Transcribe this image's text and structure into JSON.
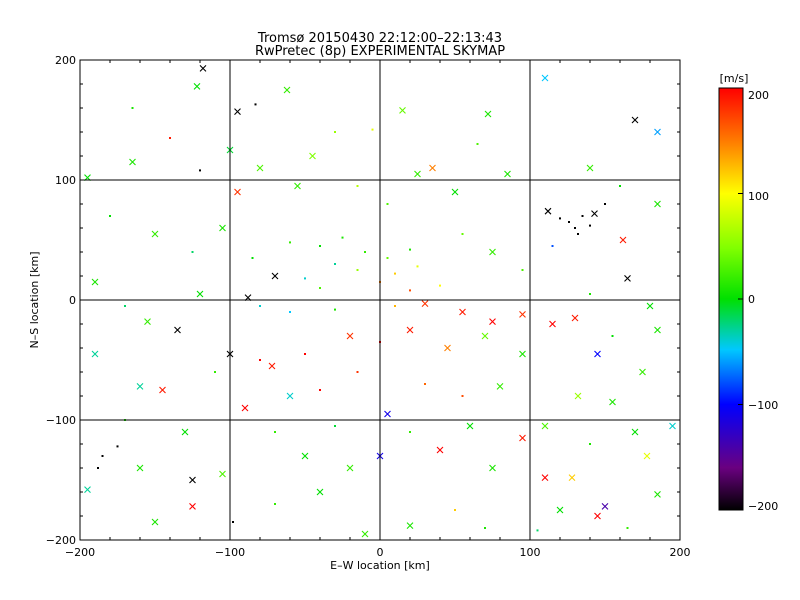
{
  "chart_data": {
    "type": "scatter",
    "title": "Tromsø 20150430 22:12:00–22:13:43",
    "subtitle": "RwPretec (8p) EXPERIMENTAL SKYMAP",
    "xlabel": "E–W location [km]",
    "ylabel": "N–S location [km]",
    "xlim": [
      -200,
      200
    ],
    "ylim": [
      -200,
      200
    ],
    "xticks": [
      "−200",
      "−100",
      "0",
      "100",
      "200"
    ],
    "yticks": [
      "200",
      "100",
      "0",
      "−100",
      "−200"
    ],
    "grid": true,
    "colorbar": {
      "label": "[m/s]",
      "range": [
        -200,
        200
      ],
      "ticks": [
        "200",
        "100",
        "0",
        "−100",
        "−200"
      ],
      "colormap": "rainbow: black (−200) → purple → blue (−100) → cyan → green (0) → yellow (100) → orange → red (200)"
    },
    "markers": [
      "dot",
      "x"
    ],
    "points": [
      {
        "x": -118,
        "y": 193,
        "v": -200,
        "m": "x"
      },
      {
        "x": -95,
        "y": 157,
        "v": -200,
        "m": "x"
      },
      {
        "x": -83,
        "y": 163,
        "v": -200,
        "m": "dot"
      },
      {
        "x": -122,
        "y": 178,
        "v": 0,
        "m": "x"
      },
      {
        "x": -62,
        "y": 175,
        "v": 20,
        "m": "x"
      },
      {
        "x": -30,
        "y": 140,
        "v": 60,
        "m": "dot"
      },
      {
        "x": -5,
        "y": 142,
        "v": 90,
        "m": "dot"
      },
      {
        "x": 15,
        "y": 158,
        "v": 40,
        "m": "x"
      },
      {
        "x": 35,
        "y": 110,
        "v": 150,
        "m": "x"
      },
      {
        "x": 72,
        "y": 155,
        "v": 10,
        "m": "x"
      },
      {
        "x": 110,
        "y": 185,
        "v": -50,
        "m": "x"
      },
      {
        "x": 170,
        "y": 150,
        "v": -200,
        "m": "x"
      },
      {
        "x": 185,
        "y": 140,
        "v": -60,
        "m": "x"
      },
      {
        "x": -195,
        "y": 102,
        "v": 0,
        "m": "x"
      },
      {
        "x": -165,
        "y": 115,
        "v": 10,
        "m": "x"
      },
      {
        "x": -120,
        "y": 108,
        "v": -200,
        "m": "dot"
      },
      {
        "x": -95,
        "y": 90,
        "v": 180,
        "m": "x"
      },
      {
        "x": -55,
        "y": 95,
        "v": 20,
        "m": "x"
      },
      {
        "x": 112,
        "y": 74,
        "v": -200,
        "m": "x"
      },
      {
        "x": 120,
        "y": 68,
        "v": -200,
        "m": "dot"
      },
      {
        "x": 126,
        "y": 65,
        "v": -200,
        "m": "dot"
      },
      {
        "x": 130,
        "y": 60,
        "v": -200,
        "m": "dot"
      },
      {
        "x": 135,
        "y": 70,
        "v": -200,
        "m": "dot"
      },
      {
        "x": 140,
        "y": 62,
        "v": -200,
        "m": "dot"
      },
      {
        "x": 143,
        "y": 72,
        "v": -200,
        "m": "x"
      },
      {
        "x": 150,
        "y": 80,
        "v": -200,
        "m": "dot"
      },
      {
        "x": 132,
        "y": 55,
        "v": -200,
        "m": "dot"
      },
      {
        "x": 162,
        "y": 50,
        "v": 190,
        "m": "x"
      },
      {
        "x": 165,
        "y": 18,
        "v": -200,
        "m": "x"
      },
      {
        "x": 115,
        "y": 45,
        "v": -80,
        "m": "dot"
      },
      {
        "x": -60,
        "y": 48,
        "v": 20,
        "m": "dot"
      },
      {
        "x": -40,
        "y": 45,
        "v": 0,
        "m": "dot"
      },
      {
        "x": -25,
        "y": 52,
        "v": 10,
        "m": "dot"
      },
      {
        "x": -10,
        "y": 40,
        "v": 20,
        "m": "dot"
      },
      {
        "x": 5,
        "y": 35,
        "v": 40,
        "m": "dot"
      },
      {
        "x": 20,
        "y": 42,
        "v": 10,
        "m": "dot"
      },
      {
        "x": -30,
        "y": 30,
        "v": -30,
        "m": "dot"
      },
      {
        "x": -15,
        "y": 25,
        "v": 60,
        "m": "dot"
      },
      {
        "x": 10,
        "y": 22,
        "v": 120,
        "m": "dot"
      },
      {
        "x": 25,
        "y": 28,
        "v": 90,
        "m": "dot"
      },
      {
        "x": -50,
        "y": 18,
        "v": -40,
        "m": "dot"
      },
      {
        "x": -70,
        "y": 20,
        "v": -200,
        "m": "x"
      },
      {
        "x": -88,
        "y": 2,
        "v": -200,
        "m": "x"
      },
      {
        "x": -40,
        "y": 10,
        "v": 30,
        "m": "dot"
      },
      {
        "x": 0,
        "y": 15,
        "v": 150,
        "m": "dot"
      },
      {
        "x": 20,
        "y": 8,
        "v": 170,
        "m": "dot"
      },
      {
        "x": 40,
        "y": 12,
        "v": 100,
        "m": "dot"
      },
      {
        "x": -80,
        "y": -5,
        "v": -40,
        "m": "dot"
      },
      {
        "x": -60,
        "y": -10,
        "v": -50,
        "m": "dot"
      },
      {
        "x": -30,
        "y": -8,
        "v": 10,
        "m": "dot"
      },
      {
        "x": 10,
        "y": -5,
        "v": 130,
        "m": "dot"
      },
      {
        "x": 30,
        "y": -3,
        "v": 180,
        "m": "x"
      },
      {
        "x": 55,
        "y": -10,
        "v": 190,
        "m": "x"
      },
      {
        "x": 75,
        "y": -18,
        "v": 200,
        "m": "x"
      },
      {
        "x": 95,
        "y": -12,
        "v": 180,
        "m": "x"
      },
      {
        "x": -135,
        "y": -25,
        "v": -200,
        "m": "x"
      },
      {
        "x": -155,
        "y": -18,
        "v": 20,
        "m": "x"
      },
      {
        "x": -100,
        "y": -45,
        "v": -200,
        "m": "x"
      },
      {
        "x": -80,
        "y": -50,
        "v": 200,
        "m": "dot"
      },
      {
        "x": -72,
        "y": -55,
        "v": 190,
        "m": "x"
      },
      {
        "x": -50,
        "y": -45,
        "v": 200,
        "m": "dot"
      },
      {
        "x": -20,
        "y": -30,
        "v": 180,
        "m": "x"
      },
      {
        "x": 0,
        "y": -35,
        "v": 200,
        "m": "dot"
      },
      {
        "x": 20,
        "y": -25,
        "v": 190,
        "m": "x"
      },
      {
        "x": 45,
        "y": -40,
        "v": 150,
        "m": "x"
      },
      {
        "x": 70,
        "y": -30,
        "v": 40,
        "m": "x"
      },
      {
        "x": 95,
        "y": -45,
        "v": 10,
        "m": "x"
      },
      {
        "x": 115,
        "y": -20,
        "v": 200,
        "m": "x"
      },
      {
        "x": 130,
        "y": -15,
        "v": 190,
        "m": "x"
      },
      {
        "x": 145,
        "y": -45,
        "v": -100,
        "m": "x"
      },
      {
        "x": 175,
        "y": -60,
        "v": 20,
        "m": "x"
      },
      {
        "x": -145,
        "y": -75,
        "v": 190,
        "m": "x"
      },
      {
        "x": -160,
        "y": -72,
        "v": -30,
        "m": "x"
      },
      {
        "x": -90,
        "y": -90,
        "v": 200,
        "m": "x"
      },
      {
        "x": -60,
        "y": -80,
        "v": -40,
        "m": "x"
      },
      {
        "x": -40,
        "y": -75,
        "v": 200,
        "m": "dot"
      },
      {
        "x": -15,
        "y": -60,
        "v": 180,
        "m": "dot"
      },
      {
        "x": 5,
        "y": -95,
        "v": -110,
        "m": "x"
      },
      {
        "x": 30,
        "y": -70,
        "v": 160,
        "m": "dot"
      },
      {
        "x": 55,
        "y": -80,
        "v": 170,
        "m": "dot"
      },
      {
        "x": 80,
        "y": -72,
        "v": 20,
        "m": "x"
      },
      {
        "x": 110,
        "y": -105,
        "v": 30,
        "m": "x"
      },
      {
        "x": 132,
        "y": -80,
        "v": 60,
        "m": "x"
      },
      {
        "x": 155,
        "y": -85,
        "v": 10,
        "m": "x"
      },
      {
        "x": 195,
        "y": -105,
        "v": -40,
        "m": "x"
      },
      {
        "x": -185,
        "y": -130,
        "v": -200,
        "m": "dot"
      },
      {
        "x": -188,
        "y": -140,
        "v": -200,
        "m": "dot"
      },
      {
        "x": -175,
        "y": -122,
        "v": -200,
        "m": "dot"
      },
      {
        "x": -195,
        "y": -158,
        "v": -30,
        "m": "x"
      },
      {
        "x": -160,
        "y": -140,
        "v": 10,
        "m": "x"
      },
      {
        "x": -125,
        "y": -150,
        "v": -200,
        "m": "x"
      },
      {
        "x": -125,
        "y": -172,
        "v": 200,
        "m": "x"
      },
      {
        "x": -105,
        "y": -145,
        "v": 30,
        "m": "x"
      },
      {
        "x": -98,
        "y": -185,
        "v": -200,
        "m": "dot"
      },
      {
        "x": -50,
        "y": -130,
        "v": 0,
        "m": "x"
      },
      {
        "x": -20,
        "y": -140,
        "v": 20,
        "m": "x"
      },
      {
        "x": 0,
        "y": -130,
        "v": -110,
        "m": "x"
      },
      {
        "x": 40,
        "y": -125,
        "v": 200,
        "m": "x"
      },
      {
        "x": 50,
        "y": -175,
        "v": 120,
        "m": "dot"
      },
      {
        "x": 75,
        "y": -140,
        "v": 10,
        "m": "x"
      },
      {
        "x": 95,
        "y": -115,
        "v": 190,
        "m": "x"
      },
      {
        "x": 110,
        "y": -148,
        "v": 200,
        "m": "x"
      },
      {
        "x": 128,
        "y": -148,
        "v": 120,
        "m": "x"
      },
      {
        "x": 150,
        "y": -172,
        "v": -140,
        "m": "x"
      },
      {
        "x": 145,
        "y": -180,
        "v": 200,
        "m": "x"
      },
      {
        "x": 178,
        "y": -130,
        "v": 90,
        "m": "x"
      },
      {
        "x": 185,
        "y": -162,
        "v": 10,
        "m": "x"
      },
      {
        "x": -10,
        "y": -195,
        "v": 20,
        "m": "x"
      },
      {
        "x": 20,
        "y": -188,
        "v": 10,
        "m": "x"
      },
      {
        "x": 105,
        "y": -192,
        "v": -20,
        "m": "dot"
      },
      {
        "x": -165,
        "y": 160,
        "v": 10,
        "m": "dot"
      },
      {
        "x": -140,
        "y": 135,
        "v": 190,
        "m": "dot"
      },
      {
        "x": -100,
        "y": 125,
        "v": -10,
        "m": "x"
      },
      {
        "x": -80,
        "y": 110,
        "v": 30,
        "m": "x"
      },
      {
        "x": -45,
        "y": 120,
        "v": 50,
        "m": "x"
      },
      {
        "x": -15,
        "y": 95,
        "v": 70,
        "m": "dot"
      },
      {
        "x": 5,
        "y": 80,
        "v": 30,
        "m": "dot"
      },
      {
        "x": 25,
        "y": 105,
        "v": 20,
        "m": "x"
      },
      {
        "x": 50,
        "y": 90,
        "v": 0,
        "m": "x"
      },
      {
        "x": 65,
        "y": 130,
        "v": 30,
        "m": "dot"
      },
      {
        "x": 85,
        "y": 105,
        "v": 10,
        "m": "x"
      },
      {
        "x": 140,
        "y": 110,
        "v": 20,
        "m": "x"
      },
      {
        "x": 160,
        "y": 95,
        "v": 0,
        "m": "dot"
      },
      {
        "x": 185,
        "y": 80,
        "v": 10,
        "m": "x"
      },
      {
        "x": -180,
        "y": 70,
        "v": 0,
        "m": "dot"
      },
      {
        "x": -150,
        "y": 55,
        "v": 20,
        "m": "x"
      },
      {
        "x": -125,
        "y": 40,
        "v": -20,
        "m": "dot"
      },
      {
        "x": -105,
        "y": 60,
        "v": 10,
        "m": "x"
      },
      {
        "x": -85,
        "y": 35,
        "v": 0,
        "m": "dot"
      },
      {
        "x": 55,
        "y": 55,
        "v": 40,
        "m": "dot"
      },
      {
        "x": 75,
        "y": 40,
        "v": 20,
        "m": "x"
      },
      {
        "x": 95,
        "y": 25,
        "v": 30,
        "m": "dot"
      },
      {
        "x": -190,
        "y": 15,
        "v": 10,
        "m": "x"
      },
      {
        "x": -170,
        "y": -5,
        "v": -20,
        "m": "dot"
      },
      {
        "x": -120,
        "y": 5,
        "v": 0,
        "m": "x"
      },
      {
        "x": 140,
        "y": 5,
        "v": 10,
        "m": "dot"
      },
      {
        "x": 180,
        "y": -5,
        "v": 0,
        "m": "x"
      },
      {
        "x": -190,
        "y": -45,
        "v": -30,
        "m": "x"
      },
      {
        "x": -110,
        "y": -60,
        "v": 20,
        "m": "dot"
      },
      {
        "x": 155,
        "y": -30,
        "v": 0,
        "m": "dot"
      },
      {
        "x": 185,
        "y": -25,
        "v": 10,
        "m": "x"
      },
      {
        "x": -170,
        "y": -100,
        "v": 10,
        "m": "dot"
      },
      {
        "x": -130,
        "y": -110,
        "v": 0,
        "m": "x"
      },
      {
        "x": -70,
        "y": -110,
        "v": 20,
        "m": "dot"
      },
      {
        "x": -30,
        "y": -105,
        "v": -10,
        "m": "dot"
      },
      {
        "x": 20,
        "y": -110,
        "v": 20,
        "m": "dot"
      },
      {
        "x": 60,
        "y": -105,
        "v": 0,
        "m": "x"
      },
      {
        "x": 140,
        "y": -120,
        "v": 10,
        "m": "dot"
      },
      {
        "x": 170,
        "y": -110,
        "v": 0,
        "m": "x"
      },
      {
        "x": -150,
        "y": -185,
        "v": 10,
        "m": "x"
      },
      {
        "x": -70,
        "y": -170,
        "v": 20,
        "m": "dot"
      },
      {
        "x": -40,
        "y": -160,
        "v": 0,
        "m": "x"
      },
      {
        "x": 70,
        "y": -190,
        "v": 10,
        "m": "dot"
      },
      {
        "x": 120,
        "y": -175,
        "v": 0,
        "m": "x"
      },
      {
        "x": 165,
        "y": -190,
        "v": 20,
        "m": "dot"
      }
    ]
  }
}
